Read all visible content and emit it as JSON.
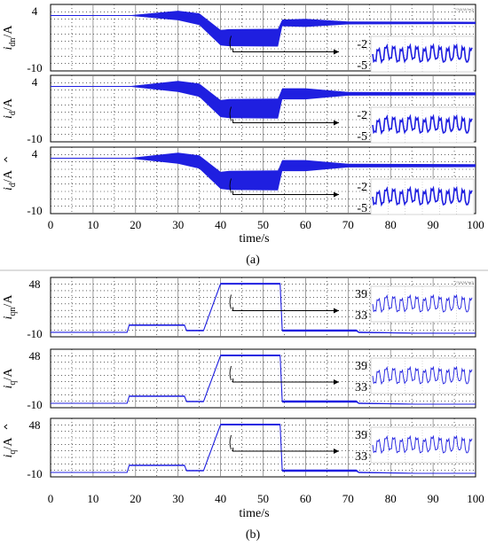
{
  "figure": {
    "top_caption": "(a)",
    "bottom_caption": "(b)",
    "tiny_note": "??(A?A?e(|)"
  },
  "chart_data": [
    {
      "type": "line",
      "name": "a",
      "xlabel": "time/s",
      "xlim": [
        0,
        100
      ],
      "x_ticks": [
        "0",
        "10",
        "20",
        "30",
        "40",
        "50",
        "60",
        "70",
        "80",
        "90",
        "100"
      ],
      "line_color": "#1f1fe0",
      "grid": true,
      "panels": [
        {
          "ylabel": "i_dn/A",
          "ylabel_main": "i",
          "ylabel_sub": "dn",
          "ylabel_tail": "/A",
          "hat": false,
          "y_ticks": [
            "4",
            "-10"
          ],
          "ylim": [
            -12,
            6
          ],
          "series": {
            "x": [
              0,
              18,
              30,
              35,
              40,
              42,
              53.5,
              54.5,
              60,
              70,
              100
            ],
            "y": [
              3,
              3,
              3,
              2,
              -3,
              -3,
              -3,
              1,
              1,
              1,
              1
            ],
            "band": [
              0,
              0,
              1.3,
              1.6,
              2.1,
              2.3,
              2.4,
              0.9,
              1.1,
              0.4,
              0.3
            ]
          },
          "inset": {
            "from_x": 45,
            "labels": [
              "-2",
              "-5"
            ],
            "values": [
              -2,
              -5
            ]
          }
        },
        {
          "ylabel": "i_d/A",
          "ylabel_main": "i",
          "ylabel_sub": "d",
          "ylabel_tail": "/A",
          "hat": false,
          "y_ticks": [
            "4",
            "-10"
          ],
          "ylim": [
            -12,
            6
          ],
          "series": {
            "x": [
              0,
              18,
              30,
              35,
              40,
              42,
              53.5,
              54.5,
              60,
              70,
              100
            ],
            "y": [
              3,
              3,
              3,
              2,
              -3,
              -3,
              -3,
              1,
              1,
              1,
              1
            ],
            "band": [
              0,
              0,
              1.5,
              1.8,
              2.3,
              2.6,
              2.7,
              1.5,
              1.5,
              0.5,
              0.4
            ]
          },
          "inset": {
            "from_x": 45,
            "labels": [
              "-2",
              "-5"
            ],
            "values": [
              -2,
              -5
            ]
          }
        },
        {
          "ylabel": "î_d/A",
          "ylabel_main": "i",
          "ylabel_sub": "d",
          "ylabel_tail": "/A",
          "hat": true,
          "y_ticks": [
            "4",
            "-10"
          ],
          "ylim": [
            -12,
            6
          ],
          "series": {
            "x": [
              0,
              18,
              30,
              35,
              40,
              42,
              53.5,
              54.5,
              60,
              70,
              100
            ],
            "y": [
              3,
              3,
              3,
              2,
              -3,
              -3,
              -3,
              1,
              1,
              1,
              1
            ],
            "band": [
              0,
              0,
              1.5,
              1.8,
              2.3,
              2.6,
              2.7,
              1.5,
              1.5,
              0.5,
              0.4
            ]
          },
          "inset": {
            "from_x": 45,
            "labels": [
              "-2",
              "-5"
            ],
            "values": [
              -2,
              -5
            ]
          }
        }
      ]
    },
    {
      "type": "line",
      "name": "b",
      "xlabel": "time/s",
      "xlim": [
        0,
        100
      ],
      "x_ticks": [
        "0",
        "10",
        "20",
        "30",
        "40",
        "50",
        "60",
        "70",
        "80",
        "90",
        "100"
      ],
      "line_color": "#1f1fe0",
      "grid": true,
      "panels": [
        {
          "ylabel": "i_qn/A",
          "ylabel_main": "i",
          "ylabel_sub": "qn",
          "ylabel_tail": "/A",
          "hat": false,
          "y_ticks": [
            "48",
            "-10"
          ],
          "ylim": [
            -14,
            52
          ],
          "series": {
            "x": [
              0,
              18,
              18.5,
              31.5,
              32,
              35,
              36,
              40,
              54,
              54.5,
              72,
              72.5,
              86,
              100
            ],
            "y": [
              -9,
              -9,
              -1,
              -1,
              -7,
              -7,
              -7,
              45,
              45,
              -7,
              -7,
              -9,
              -10,
              -10
            ],
            "band": [
              0,
              0,
              0.8,
              0.8,
              0.8,
              0.8,
              0.8,
              1.0,
              1.0,
              1.2,
              1.2,
              0.8,
              0.4,
              0.3
            ]
          },
          "inset": {
            "from_x": 45,
            "labels": [
              "39",
              "33"
            ],
            "values": [
              39,
              33
            ]
          }
        },
        {
          "ylabel": "i_q/A",
          "ylabel_main": "i",
          "ylabel_sub": "q",
          "ylabel_tail": "/A",
          "hat": false,
          "y_ticks": [
            "48",
            "-10"
          ],
          "ylim": [
            -14,
            52
          ],
          "series": {
            "x": [
              0,
              18,
              18.5,
              31.5,
              32,
              35,
              36,
              40,
              54,
              54.5,
              72,
              72.5,
              86,
              100
            ],
            "y": [
              -9,
              -9,
              -1,
              -1,
              -7,
              -7,
              -7,
              45,
              45,
              -7,
              -7,
              -9,
              -10,
              -10
            ],
            "band": [
              0,
              0,
              0.8,
              0.8,
              0.8,
              0.8,
              0.8,
              1.0,
              1.0,
              1.2,
              1.2,
              0.8,
              0.4,
              0.3
            ]
          },
          "inset": {
            "from_x": 45,
            "labels": [
              "39",
              "33"
            ],
            "values": [
              39,
              33
            ]
          }
        },
        {
          "ylabel": "î_q/A",
          "ylabel_main": "i",
          "ylabel_sub": "q",
          "ylabel_tail": "/A",
          "hat": true,
          "y_ticks": [
            "48",
            "-10"
          ],
          "ylim": [
            -14,
            52
          ],
          "series": {
            "x": [
              0,
              18,
              18.5,
              31.5,
              32,
              35,
              36,
              40,
              54,
              54.5,
              72,
              72.5,
              86,
              100
            ],
            "y": [
              -9,
              -9,
              -1,
              -1,
              -7,
              -7,
              -7,
              45,
              45,
              -7,
              -7,
              -9,
              -10,
              -10
            ],
            "band": [
              0,
              0,
              0.8,
              0.8,
              0.8,
              0.8,
              0.8,
              1.0,
              1.0,
              1.2,
              1.2,
              0.8,
              0.4,
              0.3
            ]
          },
          "inset": {
            "from_x": 45,
            "labels": [
              "39",
              "33"
            ],
            "values": [
              39,
              33
            ]
          }
        }
      ]
    }
  ]
}
